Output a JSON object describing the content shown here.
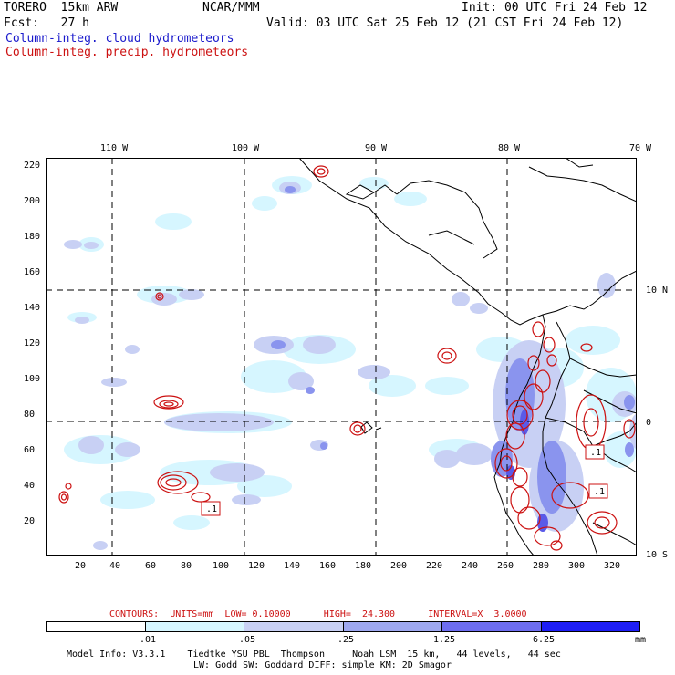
{
  "header": {
    "model": "TORERO  15km ARW",
    "center": "NCAR/MMM",
    "init": "Init: 00 UTC Fri 24 Feb 12",
    "fcst": "Fcst:   27 h",
    "valid": "Valid: 03 UTC Sat 25 Feb 12 (21 CST Fri 24 Feb 12)",
    "legend_cloud": "Column-integ. cloud hydrometeors",
    "legend_precip": "Column-integ. precip. hydrometeors"
  },
  "colors": {
    "cloud": "#1a1acc",
    "precip": "#cc1111",
    "shade1": "#d6f6ff",
    "shade2": "#c8d0f4",
    "shade3": "#9ea8f0",
    "shade4": "#6d6df0",
    "shade5": "#3c3cf0",
    "shade6": "#1e1ef5"
  },
  "axes": {
    "top_lon": [
      "110 W",
      "100 W",
      "90 W",
      "80 W",
      "70 W"
    ],
    "right_lat": [
      "10 N",
      "0",
      "10 S"
    ],
    "left_y": [
      "220",
      "200",
      "180",
      "160",
      "140",
      "120",
      "100",
      "80",
      "60",
      "40",
      "20"
    ],
    "bottom_x": [
      "20",
      "40",
      "60",
      "80",
      "100",
      "120",
      "140",
      "160",
      "180",
      "200",
      "220",
      "240",
      "260",
      "280",
      "300",
      "320"
    ]
  },
  "annotations": {
    "box_labels": [
      ".1",
      ".1",
      ".1"
    ]
  },
  "contours": {
    "text": "CONTOURS:  UNITS=mm  LOW= 0.10000      HIGH=  24.300      INTERVAL=X  3.0000"
  },
  "scale": {
    "labels": [
      ".01",
      ".05",
      ".25",
      "1.25",
      "6.25"
    ],
    "units": "mm"
  },
  "footer": {
    "line1": "Model Info: V3.3.1    Tiedtke YSU PBL  Thompson     Noah LSM  15 km,   44 levels,   44 sec",
    "line2": "LW: Godd SW: Goddard DIFF: simple KM: 2D Smagor"
  }
}
